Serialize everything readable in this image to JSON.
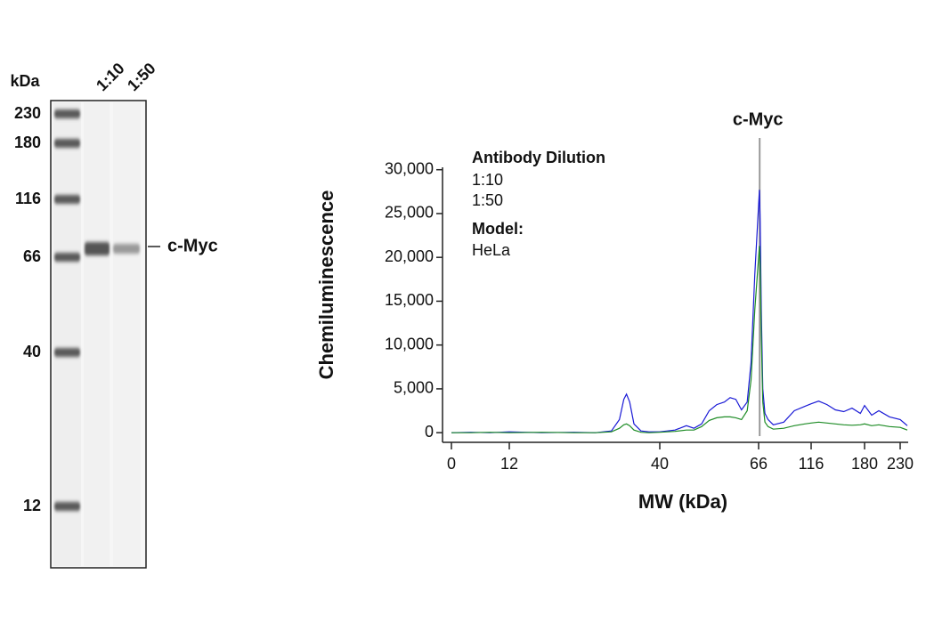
{
  "blot": {
    "unit": "kDa",
    "lanes": [
      "1:10",
      "1:50"
    ],
    "markers": [
      230,
      180,
      116,
      66,
      40,
      12
    ],
    "band_label": "c-Myc"
  },
  "chart_data": {
    "type": "line",
    "ylabel": "Chemiluminescence",
    "xlabel": "MW (kDa)",
    "legend_title": "Antibody Dilution",
    "model_label": "Model:",
    "model": "HeLa",
    "annotation": {
      "text": "c-Myc",
      "x": 67
    },
    "x": [
      0,
      4,
      8,
      12,
      18,
      24,
      28,
      31,
      32.5,
      33.3,
      33.8,
      34.4,
      35.2,
      36.5,
      38,
      40,
      44,
      47,
      49,
      51,
      53,
      55,
      57,
      58.5,
      60,
      61.5,
      63,
      64,
      65,
      66,
      66.8,
      67.5,
      68.5,
      70,
      72,
      75,
      80,
      90,
      100,
      110,
      116,
      125,
      135,
      145,
      155,
      165,
      175,
      180,
      190,
      200,
      215,
      230,
      240
    ],
    "series": [
      {
        "name": "1:10",
        "color": "#1a1ad6",
        "text_color": "#2b3a9e",
        "values": [
          0,
          50,
          0,
          100,
          0,
          50,
          0,
          200,
          1500,
          3800,
          4400,
          3500,
          1000,
          200,
          100,
          100,
          300,
          800,
          500,
          1000,
          2500,
          3200,
          3500,
          4000,
          3800,
          2600,
          3500,
          8000,
          18000,
          26000,
          27700,
          24000,
          14000,
          5000,
          2200,
          1500,
          900,
          1200,
          2500,
          3000,
          3300,
          3600,
          3200,
          2600,
          2400,
          2800,
          2200,
          3100,
          2000,
          2500,
          1800,
          1500,
          800
        ]
      },
      {
        "name": "1:50",
        "color": "#1e8c26",
        "text_color": "#1e8c26",
        "values": [
          0,
          0,
          50,
          0,
          50,
          0,
          0,
          100,
          500,
          900,
          1000,
          800,
          300,
          50,
          0,
          50,
          150,
          300,
          300,
          700,
          1400,
          1700,
          1800,
          1800,
          1700,
          1500,
          2500,
          6000,
          14000,
          20000,
          21300,
          19000,
          11000,
          3500,
          1200,
          700,
          400,
          500,
          800,
          1000,
          1100,
          1200,
          1100,
          1000,
          900,
          850,
          900,
          1000,
          800,
          900,
          700,
          600,
          300
        ]
      }
    ],
    "xticks": [
      0,
      12,
      40,
      66,
      116,
      180,
      230
    ],
    "ylim": [
      -1000,
      32000
    ],
    "yticks": [
      0,
      {
        "value": 5000,
        "label": "5,000"
      },
      {
        "value": 10000,
        "label": "10,000"
      },
      {
        "value": 15000,
        "label": "15,000"
      },
      {
        "value": 20000,
        "label": "20,000"
      },
      {
        "value": 25000,
        "label": "25,000"
      },
      {
        "value": 30000,
        "label": "30,000"
      }
    ]
  }
}
